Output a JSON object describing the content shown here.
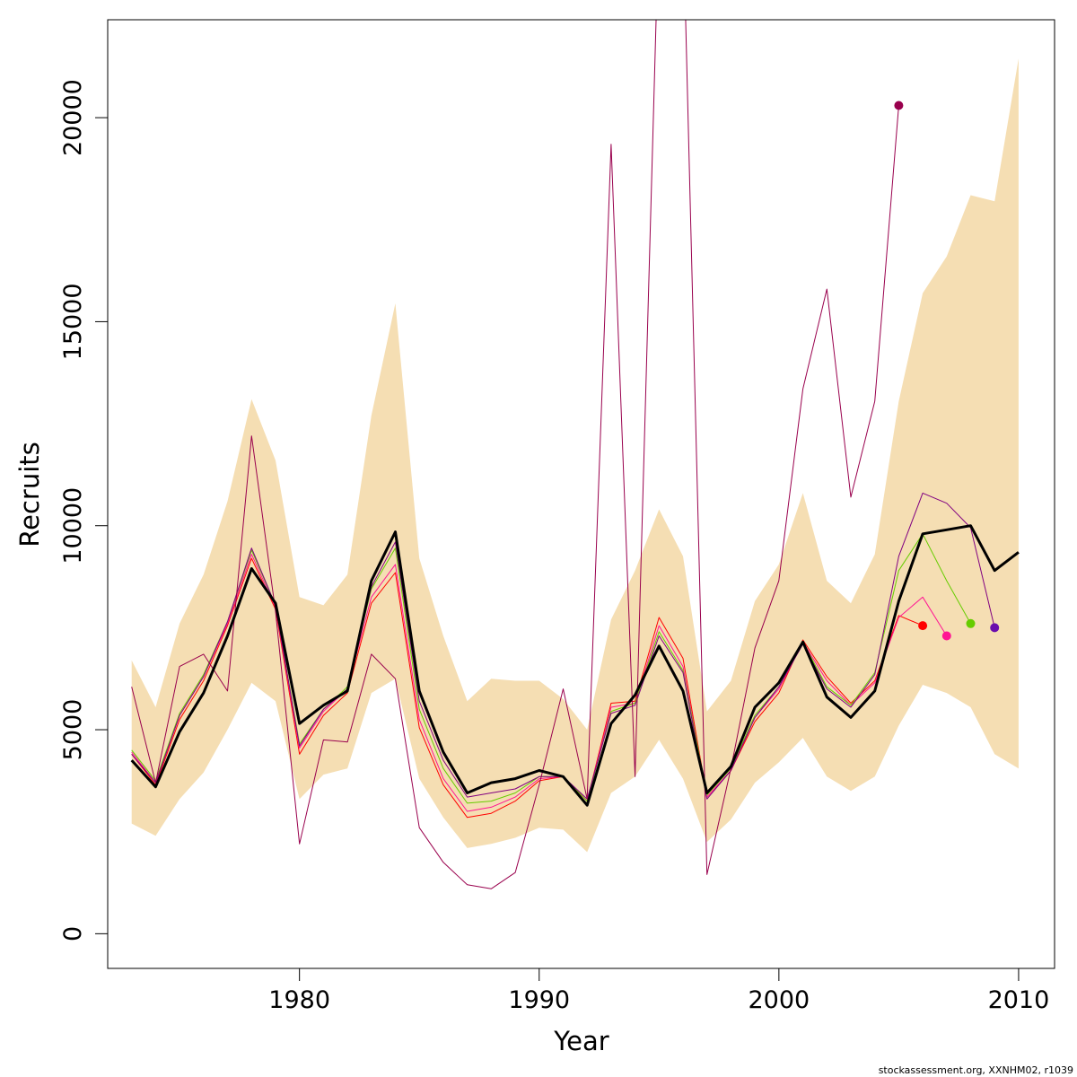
{
  "chart_data": {
    "type": "line",
    "title": "",
    "xlabel": "Year",
    "ylabel": "Recruits",
    "xlim": [
      1972,
      2011.5
    ],
    "ylim": [
      -850,
      22400
    ],
    "xticks": [
      1980,
      1990,
      2000,
      2010
    ],
    "yticks": [
      0,
      5000,
      10000,
      15000,
      20000
    ],
    "grid": false,
    "legend": "none",
    "band": {
      "color": "#f5deb3",
      "x": [
        1973,
        1974,
        1975,
        1976,
        1977,
        1978,
        1979,
        1980,
        1981,
        1982,
        1983,
        1984,
        1985,
        1986,
        1987,
        1988,
        1989,
        1990,
        1991,
        1992,
        1993,
        1994,
        1995,
        1996,
        1997,
        1998,
        1999,
        2000,
        2001,
        2002,
        2003,
        2004,
        2005,
        2006,
        2007,
        2008,
        2009,
        2010
      ],
      "upper": [
        6700,
        5550,
        7600,
        8800,
        10600,
        13100,
        11600,
        8250,
        8050,
        8800,
        12700,
        15450,
        9200,
        7300,
        5700,
        6250,
        6200,
        6200,
        5750,
        5000,
        7700,
        8900,
        10400,
        9250,
        5450,
        6200,
        8150,
        9050,
        10800,
        8650,
        8100,
        9300,
        13050,
        15700,
        16600,
        18100,
        17950,
        21450
      ],
      "lower": [
        2700,
        2400,
        3300,
        3950,
        5000,
        6150,
        5700,
        3300,
        3900,
        4050,
        5900,
        6250,
        3800,
        2850,
        2100,
        2200,
        2350,
        2600,
        2550,
        2000,
        3450,
        3850,
        4750,
        3800,
        2250,
        2800,
        3700,
        4200,
        4800,
        3850,
        3500,
        3850,
        5100,
        6100,
        5900,
        5550,
        4400,
        4050
      ]
    },
    "series": [
      {
        "color": "#000000",
        "width": 3,
        "x": [
          1973,
          1974,
          1975,
          1976,
          1977,
          1978,
          1979,
          1980,
          1981,
          1982,
          1983,
          1984,
          1985,
          1986,
          1987,
          1988,
          1989,
          1990,
          1991,
          1992,
          1993,
          1994,
          1995,
          1996,
          1997,
          1998,
          1999,
          2000,
          2001,
          2002,
          2003,
          2004,
          2005,
          2006,
          2007,
          2008,
          2009,
          2010
        ],
        "values": [
          4250,
          3600,
          4950,
          5900,
          7300,
          8950,
          8100,
          5150,
          5600,
          5950,
          8650,
          9850,
          5950,
          4450,
          3450,
          3700,
          3800,
          4000,
          3850,
          3150,
          5150,
          5850,
          7050,
          5950,
          3450,
          4100,
          5550,
          6150,
          7150,
          5800,
          5300,
          5950,
          8150,
          9800,
          9900,
          10000,
          8900,
          9350
        ]
      },
      {
        "color": "#ff0000",
        "width": 1,
        "x": [
          1973,
          1974,
          1975,
          1976,
          1977,
          1978,
          1979,
          1980,
          1981,
          1982,
          1983,
          1984,
          1985,
          1986,
          1987,
          1988,
          1989,
          1990,
          1991,
          1992,
          1993,
          1994,
          1995,
          1996,
          1997,
          1998,
          1999,
          2000,
          2001,
          2002,
          2003,
          2004,
          2005,
          2006
        ],
        "values": [
          4400,
          3650,
          5250,
          6200,
          7550,
          9200,
          7950,
          4400,
          5350,
          5900,
          8100,
          8850,
          5050,
          3650,
          2850,
          2950,
          3250,
          3750,
          3850,
          3250,
          5650,
          5700,
          7750,
          6750,
          3350,
          4000,
          5200,
          5900,
          7200,
          6300,
          5650,
          6200,
          7800,
          7550
        ]
      },
      {
        "color": "#ff1493",
        "width": 1,
        "x": [
          1973,
          1974,
          1975,
          1976,
          1977,
          1978,
          1979,
          1980,
          1981,
          1982,
          1983,
          1984,
          1985,
          1986,
          1987,
          1988,
          1989,
          1990,
          1991,
          1992,
          1993,
          1994,
          1995,
          1996,
          1997,
          1998,
          1999,
          2000,
          2001,
          2002,
          2003,
          2004,
          2005,
          2006,
          2007
        ],
        "values": [
          4450,
          3700,
          5350,
          6300,
          7600,
          9300,
          8000,
          4550,
          5450,
          6000,
          8250,
          9050,
          5250,
          3800,
          3000,
          3100,
          3350,
          3800,
          3850,
          3250,
          5550,
          5650,
          7550,
          6550,
          3350,
          4000,
          5300,
          6000,
          7150,
          6200,
          5600,
          6150,
          7750,
          8250,
          7300
        ]
      },
      {
        "color": "#66cc00",
        "width": 1,
        "x": [
          1973,
          1974,
          1975,
          1976,
          1977,
          1978,
          1979,
          1980,
          1981,
          1982,
          1983,
          1984,
          1985,
          1986,
          1987,
          1988,
          1989,
          1990,
          1991,
          1992,
          1993,
          1994,
          1995,
          1996,
          1997,
          1998,
          1999,
          2000,
          2001,
          2002,
          2003,
          2004,
          2005,
          2006,
          2007,
          2008
        ],
        "values": [
          4500,
          3750,
          5400,
          6350,
          7650,
          9400,
          8050,
          4650,
          5500,
          6050,
          8450,
          9450,
          5500,
          4050,
          3200,
          3250,
          3450,
          3850,
          3850,
          3250,
          5450,
          5650,
          7400,
          6450,
          3400,
          4050,
          5350,
          6050,
          7150,
          6050,
          5600,
          6400,
          8900,
          9800,
          8650,
          7600
        ]
      },
      {
        "color": "#800080",
        "width": 1,
        "x": [
          1973,
          1974,
          1975,
          1976,
          1977,
          1978,
          1979,
          1980,
          1981,
          1982,
          1983,
          1984,
          1985,
          1986,
          1987,
          1988,
          1989,
          1990,
          1991,
          1992,
          1993,
          1994,
          1995,
          1996,
          1997,
          1998,
          1999,
          2000,
          2001,
          2002,
          2003,
          2004,
          2005,
          2006,
          2007,
          2008,
          2009
        ],
        "values": [
          4400,
          3700,
          5350,
          6300,
          7650,
          9450,
          8050,
          4600,
          5500,
          6000,
          8500,
          9600,
          5700,
          4250,
          3350,
          3450,
          3550,
          3850,
          3850,
          3300,
          5400,
          5600,
          7300,
          6400,
          3300,
          4000,
          5300,
          6050,
          7100,
          6000,
          5550,
          6350,
          9250,
          10800,
          10550,
          9950,
          7500
        ]
      },
      {
        "color": "#99004d",
        "width": 1,
        "x": [
          1973,
          1974,
          1975,
          1976,
          1977,
          1978,
          1979,
          1980,
          1981,
          1982,
          1983,
          1984,
          1985,
          1986,
          1987,
          1988,
          1989,
          1990,
          1991,
          1992,
          1993,
          1994,
          1995,
          1996,
          1997,
          1998,
          1999,
          2000,
          2001,
          2002,
          2003,
          2004,
          2005
        ],
        "values": [
          6050,
          3700,
          6550,
          6850,
          5950,
          12200,
          7900,
          2200,
          4750,
          4700,
          6850,
          6250,
          2600,
          1750,
          1200,
          1100,
          1500,
          3650,
          6000,
          3300,
          19350,
          3850,
          25000,
          25000,
          1450,
          4050,
          7000,
          8650,
          13350,
          15800,
          10700,
          13050,
          20300
        ]
      }
    ],
    "endpoints": [
      {
        "x": 2005,
        "y": 20300,
        "color": "#99004d"
      },
      {
        "x": 2006,
        "y": 7550,
        "color": "#ff0000"
      },
      {
        "x": 2007,
        "y": 7300,
        "color": "#ff1493"
      },
      {
        "x": 2008,
        "y": 7600,
        "color": "#66cc00"
      },
      {
        "x": 2009,
        "y": 7500,
        "color": "#6a0dad"
      }
    ]
  },
  "footer_text": "stockassessment.org, XXNHM02, r1039"
}
